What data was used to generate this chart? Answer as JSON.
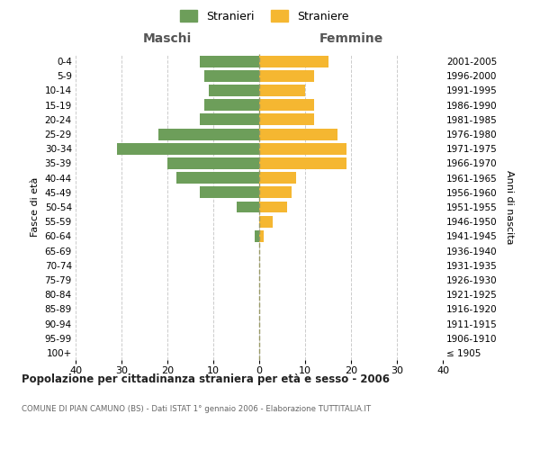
{
  "age_groups": [
    "100+",
    "95-99",
    "90-94",
    "85-89",
    "80-84",
    "75-79",
    "70-74",
    "65-69",
    "60-64",
    "55-59",
    "50-54",
    "45-49",
    "40-44",
    "35-39",
    "30-34",
    "25-29",
    "20-24",
    "15-19",
    "10-14",
    "5-9",
    "0-4"
  ],
  "birth_years": [
    "≤ 1905",
    "1906-1910",
    "1911-1915",
    "1916-1920",
    "1921-1925",
    "1926-1930",
    "1931-1935",
    "1936-1940",
    "1941-1945",
    "1946-1950",
    "1951-1955",
    "1956-1960",
    "1961-1965",
    "1966-1970",
    "1971-1975",
    "1976-1980",
    "1981-1985",
    "1986-1990",
    "1991-1995",
    "1996-2000",
    "2001-2005"
  ],
  "maschi": [
    0,
    0,
    0,
    0,
    0,
    0,
    0,
    0,
    1,
    0,
    5,
    13,
    18,
    20,
    31,
    22,
    13,
    12,
    11,
    12,
    13
  ],
  "femmine": [
    0,
    0,
    0,
    0,
    0,
    0,
    0,
    0,
    1,
    3,
    6,
    7,
    8,
    19,
    19,
    17,
    12,
    12,
    10,
    12,
    15
  ],
  "maschi_color": "#6d9e5a",
  "femmine_color": "#f5b731",
  "title_main": "Popolazione per cittadinanza straniera per età e sesso - 2006",
  "title_sub": "COMUNE DI PIAN CAMUNO (BS) - Dati ISTAT 1° gennaio 2006 - Elaborazione TUTTITALIA.IT",
  "xlabel_left": "Maschi",
  "xlabel_right": "Femmine",
  "ylabel_left": "Fasce di età",
  "ylabel_right": "Anni di nascita",
  "legend_maschi": "Stranieri",
  "legend_femmine": "Straniere",
  "xlim": 40,
  "background_color": "#ffffff",
  "grid_color": "#cccccc",
  "bar_height": 0.8
}
